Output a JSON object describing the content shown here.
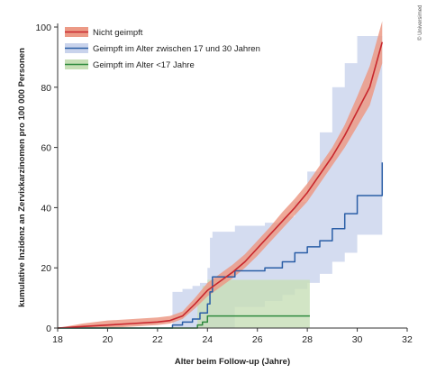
{
  "chart_data": {
    "type": "line",
    "title": "",
    "xlabel": "Alter beim Follow-up (Jahre)",
    "ylabel": "kumulative Inzidenz an Zervixkarzinomen pro 100 000 Personen",
    "xlim": [
      18,
      32
    ],
    "ylim": [
      0,
      100
    ],
    "xticks": [
      18,
      20,
      22,
      24,
      26,
      28,
      30,
      32
    ],
    "yticks": [
      0,
      20,
      40,
      60,
      80,
      100
    ],
    "grid": false,
    "legend_position": "top-left",
    "credit": "© Universimed",
    "series": [
      {
        "name": "Nicht geimpft",
        "color": "#c8272d",
        "band_color": "#ec9a86",
        "step": false,
        "x": [
          18,
          19,
          20,
          21,
          22,
          22.5,
          23,
          23.5,
          24,
          24.5,
          25,
          25.5,
          26,
          26.5,
          27,
          27.5,
          28,
          28.5,
          29,
          29.5,
          30,
          30.5,
          31
        ],
        "y": [
          0,
          0.5,
          1,
          1.5,
          2,
          2.5,
          4,
          8,
          12.5,
          15.5,
          18.5,
          22,
          26.5,
          31,
          35.5,
          40,
          45,
          51,
          57,
          64,
          72,
          80,
          95
        ],
        "lower": [
          0,
          0,
          0,
          0.5,
          1,
          1.5,
          3,
          6.5,
          10.5,
          13.5,
          16.5,
          20,
          24,
          28.5,
          33,
          37.5,
          42,
          48,
          54,
          60,
          67,
          74,
          88
        ],
        "upper": [
          0,
          1.5,
          2.5,
          3,
          3.5,
          4,
          5.5,
          10,
          15,
          18,
          21,
          24.5,
          29,
          33.5,
          38.5,
          43,
          48,
          54,
          60,
          67.5,
          77,
          87,
          102
        ]
      },
      {
        "name": "Geimpft im Alter zwischen 17 und 30 Jahren",
        "color": "#2a5ea6",
        "band_color": "#c9d3ec",
        "step": true,
        "x": [
          18,
          22.6,
          23.0,
          23.4,
          23.7,
          24.0,
          24.1,
          24.2,
          25.1,
          26.3,
          27.0,
          27.5,
          28.0,
          28.5,
          29.0,
          29.5,
          30.0,
          31.0
        ],
        "y": [
          0,
          1,
          2,
          3,
          5,
          8,
          12,
          17,
          19,
          20,
          22,
          25,
          27,
          29,
          33,
          38,
          44,
          55
        ],
        "lower": [
          0,
          0,
          0,
          0,
          0,
          0,
          0,
          0,
          7,
          9,
          11,
          13,
          15,
          18,
          22,
          25,
          31,
          31
        ],
        "upper": [
          0,
          12,
          13,
          14,
          15,
          20,
          30,
          32,
          34,
          35,
          37,
          42,
          52,
          65,
          80,
          88,
          97,
          97
        ]
      },
      {
        "name": "Geimpft im Alter <17 Jahre",
        "color": "#2f8a3e",
        "band_color": "#c7dfb6",
        "step": true,
        "x": [
          18,
          23.6,
          23.8,
          24.0,
          28.1
        ],
        "y": [
          0,
          1,
          2,
          4,
          4
        ],
        "lower": [
          0,
          0,
          0,
          0,
          0
        ],
        "upper": [
          0,
          10,
          14,
          16,
          16
        ]
      }
    ]
  }
}
